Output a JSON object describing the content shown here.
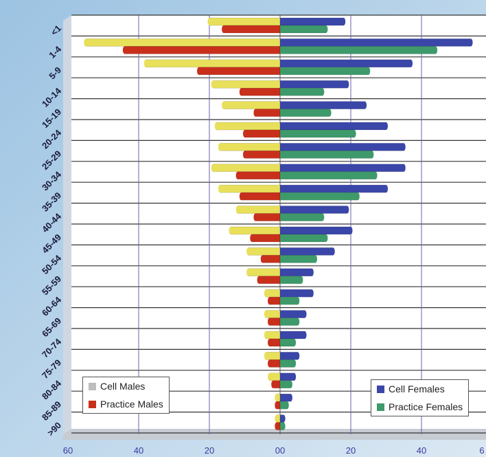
{
  "chart_data": {
    "type": "bar",
    "orientation": "horizontal",
    "categories": [
      "<1",
      "1-4",
      "5-9",
      "10-14",
      "15-19",
      "20-24",
      "25-29",
      "30-34",
      "35-39",
      "40-44",
      "45-49",
      "50-54",
      "55-59",
      "60-64",
      "65-69",
      "70-74",
      "75-79",
      "80-84",
      "85-89",
      ">90"
    ],
    "x_ticks": [
      "60",
      "40",
      "20",
      "00",
      "20",
      "40",
      "6"
    ],
    "xlim": [
      -60,
      60
    ],
    "grid": true,
    "series": [
      {
        "name": "Cell Males",
        "side": "left",
        "color": "#e8e05a",
        "values": [
          20,
          55,
          38,
          19,
          16,
          18,
          17,
          19,
          17,
          12,
          14,
          9,
          9,
          4,
          4,
          4,
          4,
          3,
          1,
          1
        ]
      },
      {
        "name": "Practice Males",
        "side": "left",
        "color": "#c8301c",
        "values": [
          16,
          44,
          23,
          11,
          7,
          10,
          10,
          12,
          11,
          7,
          8,
          5,
          6,
          3,
          3,
          3,
          3,
          2,
          1,
          1
        ]
      },
      {
        "name": "Cell Females",
        "side": "right",
        "color": "#3a46a8",
        "values": [
          18,
          54,
          37,
          19,
          24,
          30,
          35,
          35,
          30,
          19,
          20,
          15,
          9,
          9,
          7,
          7,
          5,
          4,
          3,
          1
        ]
      },
      {
        "name": "Practice Females",
        "side": "right",
        "color": "#3e9a6a",
        "values": [
          13,
          44,
          25,
          12,
          14,
          21,
          26,
          27,
          22,
          12,
          13,
          10,
          6,
          5,
          5,
          4,
          4,
          3,
          2,
          1
        ]
      }
    ],
    "legend": {
      "left": "bottom-left",
      "right": "bottom-right"
    }
  }
}
